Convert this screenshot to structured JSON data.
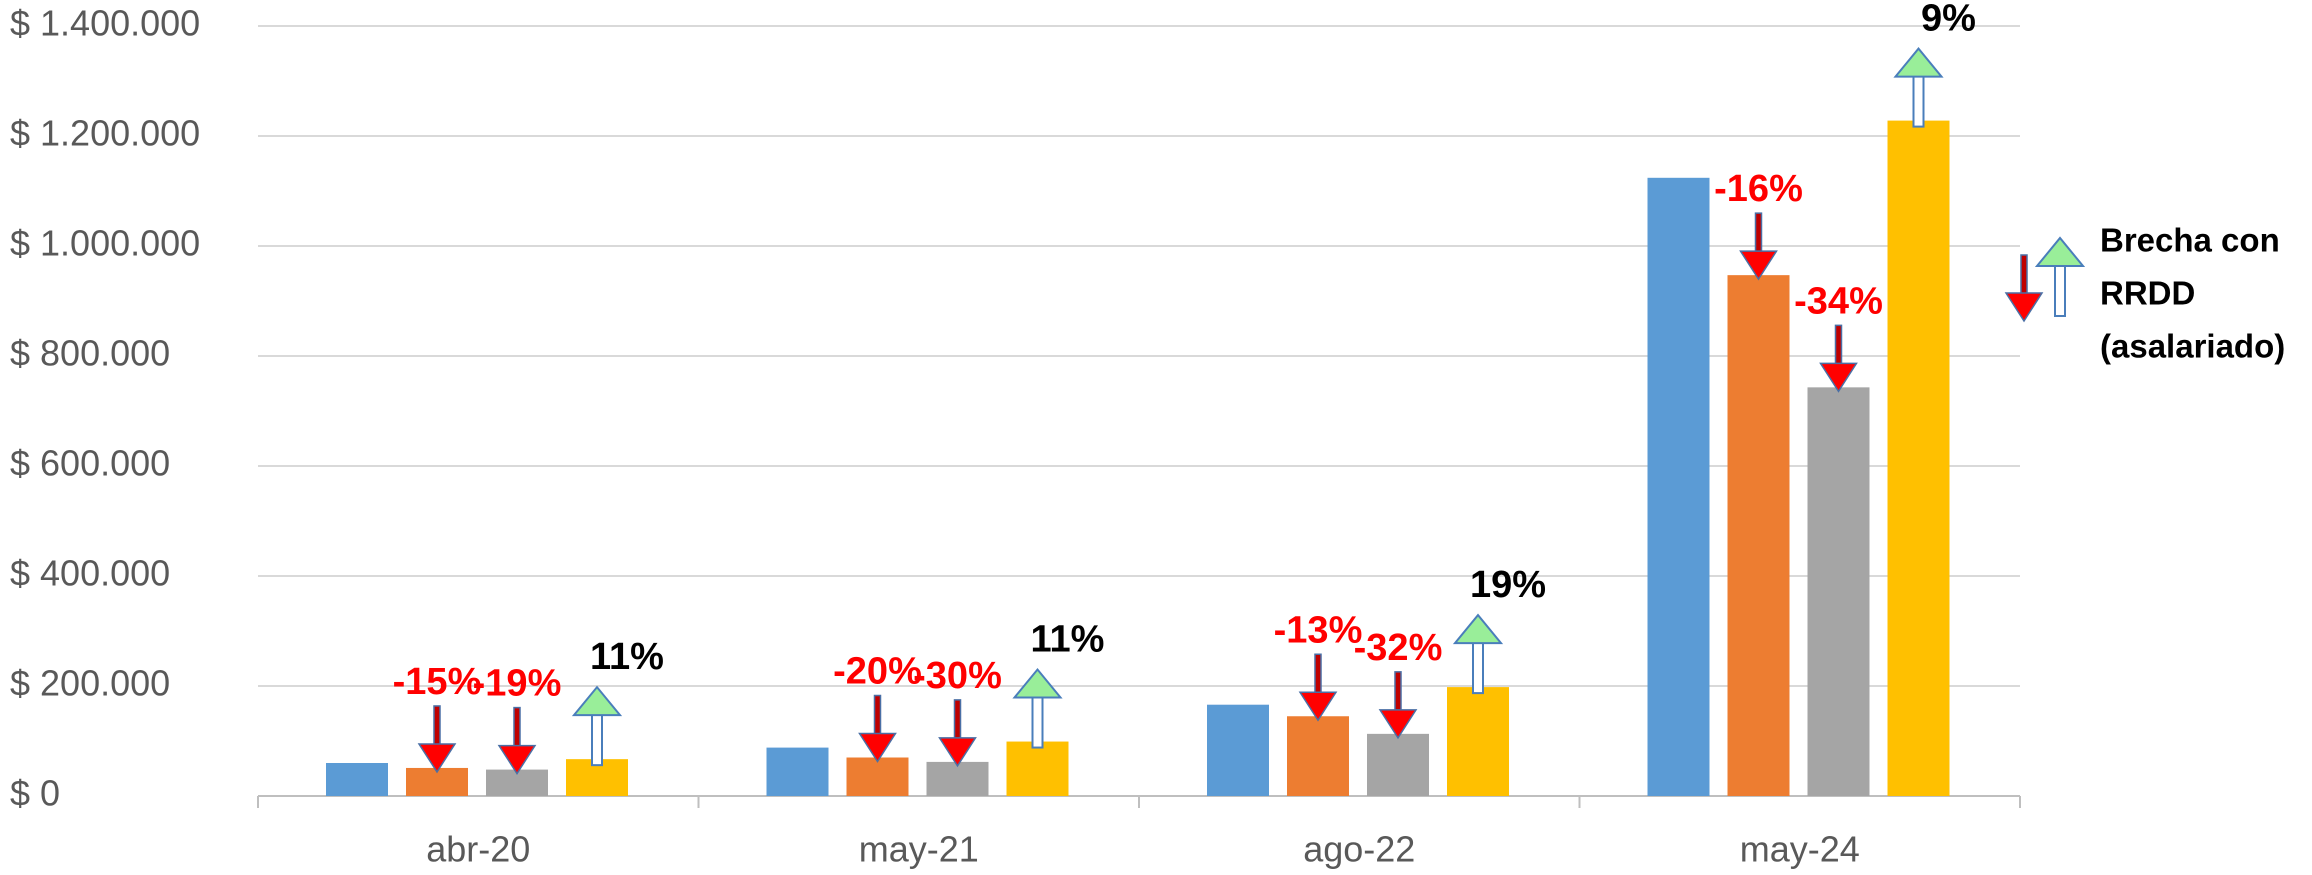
{
  "chart_data": {
    "type": "bar",
    "categories": [
      "abr-20",
      "may-21",
      "ago-22",
      "may-24"
    ],
    "series": [
      {
        "color": "#5b9bd5",
        "values": [
          60000,
          88000,
          166000,
          1124000
        ]
      },
      {
        "color": "#ed7d31",
        "values": [
          51000,
          70000,
          145000,
          947000
        ],
        "gap_labels": [
          "-15%",
          "-20%",
          "-13%",
          "-16%"
        ],
        "gap_color": "#ff0000",
        "gap_arrow": "down"
      },
      {
        "color": "#a5a5a5",
        "values": [
          48000,
          62000,
          113000,
          743000
        ],
        "gap_labels": [
          "-19%",
          "-30%",
          "-32%",
          "-34%"
        ],
        "gap_color": "#ff0000",
        "gap_arrow": "down"
      },
      {
        "color": "#ffc000",
        "values": [
          67000,
          99000,
          198000,
          1228000
        ],
        "gap_labels": [
          "11%",
          "11%",
          "19%",
          "9%"
        ],
        "gap_color": "#000000",
        "gap_arrow": "up"
      }
    ],
    "ylim": [
      0,
      1400000
    ],
    "yticks": [
      {
        "value": 0,
        "label": "$ 0"
      },
      {
        "value": 200000,
        "label": "$ 200.000"
      },
      {
        "value": 400000,
        "label": "$ 400.000"
      },
      {
        "value": 600000,
        "label": "$ 600.000"
      },
      {
        "value": 800000,
        "label": "$ 800.000"
      },
      {
        "value": 1000000,
        "label": "$ 1.000.000"
      },
      {
        "value": 1200000,
        "label": "$ 1.200.000"
      },
      {
        "value": 1400000,
        "label": "$ 1.400.000"
      }
    ],
    "grid": true,
    "legend_note": [
      "Brecha con",
      "RRDD",
      "(asalariado)"
    ]
  }
}
